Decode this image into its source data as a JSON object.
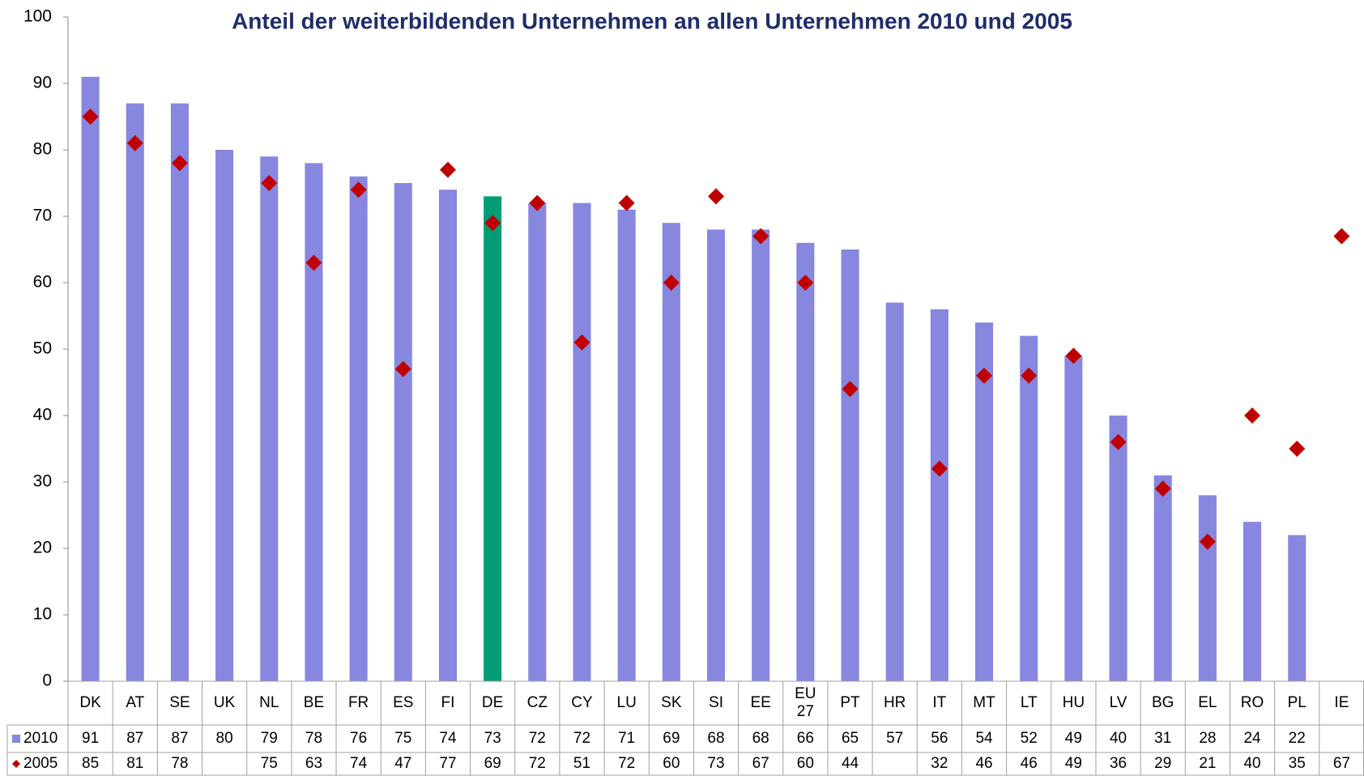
{
  "chart_data": {
    "type": "bar",
    "title": "Anteil der weiterbildenden Unternehmen an allen Unternehmen 2010 und 2005",
    "categories": [
      "DK",
      "AT",
      "SE",
      "UK",
      "NL",
      "BE",
      "FR",
      "ES",
      "FI",
      "DE",
      "CZ",
      "CY",
      "LU",
      "SK",
      "SI",
      "EE",
      "EU 27",
      "PT",
      "HR",
      "IT",
      "MT",
      "LT",
      "HU",
      "LV",
      "BG",
      "EL",
      "RO",
      "PL",
      "IE"
    ],
    "series": [
      {
        "name": "2010",
        "type": "bar",
        "color": "#8787e0",
        "bar_colors": [
          "#8787e0",
          "#8787e0",
          "#8787e0",
          "#8787e0",
          "#8787e0",
          "#8787e0",
          "#8787e0",
          "#8787e0",
          "#8787e0",
          "#009c75",
          "#8787e0",
          "#8787e0",
          "#8787e0",
          "#8787e0",
          "#8787e0",
          "#8787e0",
          "#8787e0",
          "#8787e0",
          "#8787e0",
          "#8787e0",
          "#8787e0",
          "#8787e0",
          "#8787e0",
          "#8787e0",
          "#8787e0",
          "#8787e0",
          "#8787e0",
          "#8787e0",
          "#8787e0"
        ],
        "values": [
          91,
          87,
          87,
          80,
          79,
          78,
          76,
          75,
          74,
          73,
          72,
          72,
          71,
          69,
          68,
          68,
          66,
          65,
          57,
          56,
          54,
          52,
          49,
          40,
          31,
          28,
          24,
          22,
          null
        ]
      },
      {
        "name": "2005",
        "type": "scatter",
        "color": "#c00000",
        "values": [
          85,
          81,
          78,
          null,
          75,
          63,
          74,
          47,
          77,
          69,
          72,
          51,
          72,
          60,
          73,
          67,
          60,
          44,
          null,
          32,
          46,
          46,
          49,
          36,
          29,
          21,
          40,
          35,
          67
        ]
      }
    ],
    "ylim": [
      0,
      100
    ],
    "yticks": [
      0,
      10,
      20,
      30,
      40,
      50,
      60,
      70,
      80,
      90,
      100
    ],
    "grid": false,
    "data_table": true
  }
}
